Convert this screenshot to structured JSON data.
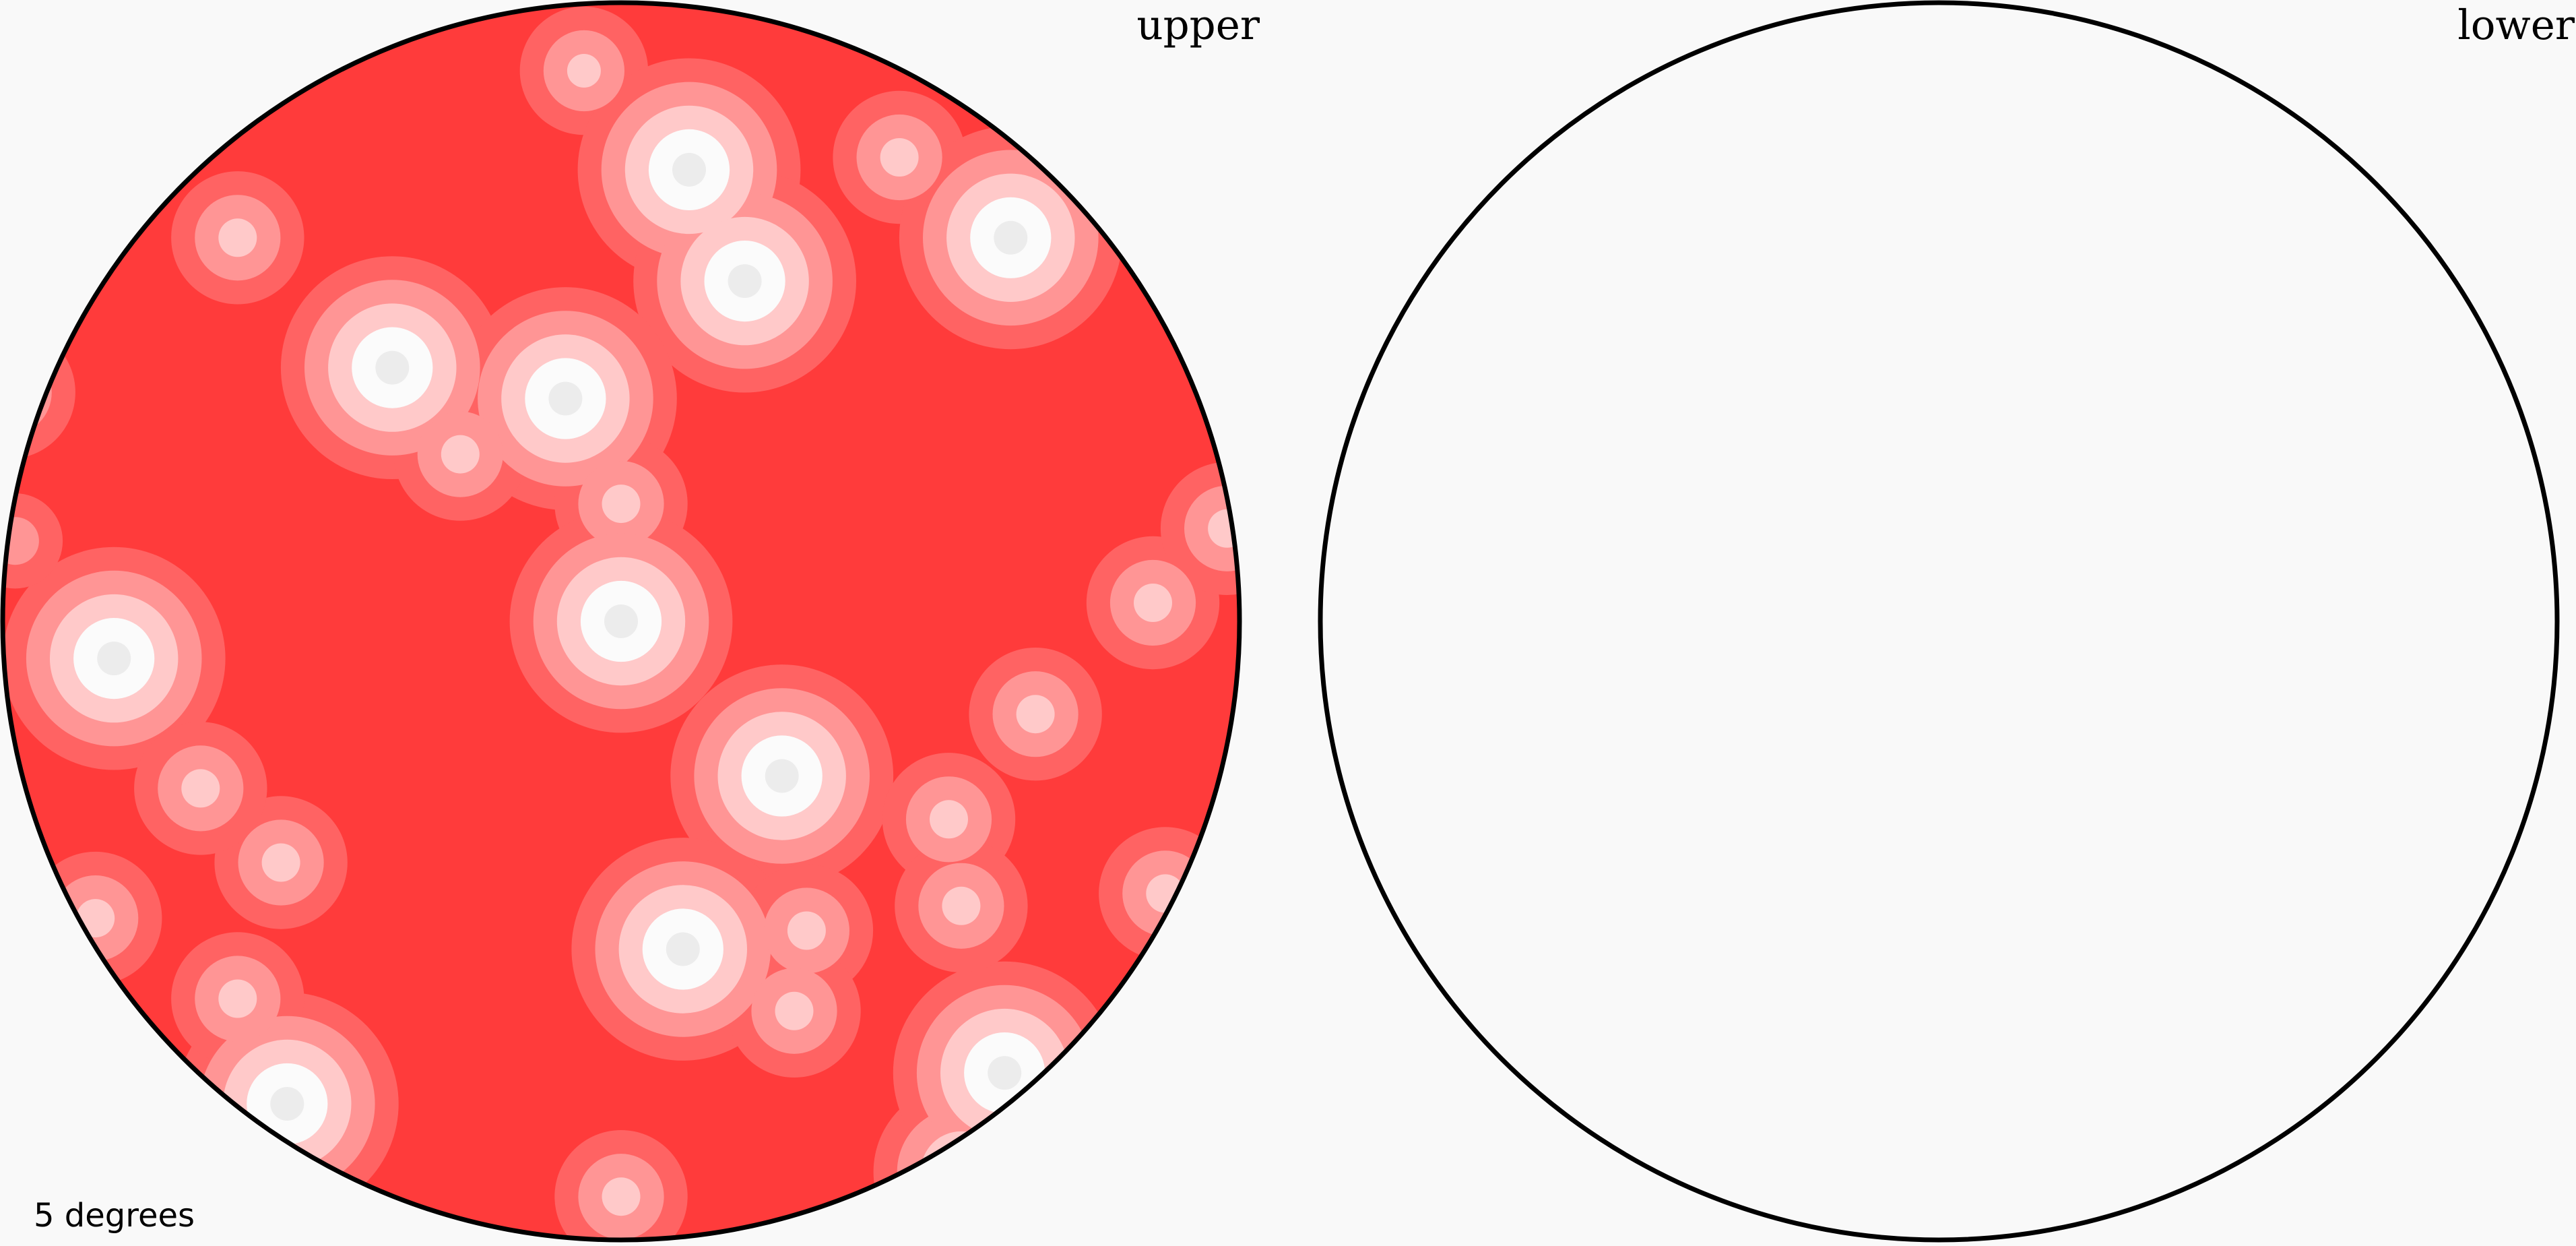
{
  "chart_data": {
    "type": "heatmap",
    "projection": "stereographic",
    "hemispheres": [
      {
        "name": "upper",
        "label": "upper",
        "filled": true
      },
      {
        "name": "lower",
        "label": "lower",
        "filled": false
      }
    ],
    "annotation": "5 degrees",
    "colors": {
      "background": "#f9f9f9",
      "outline": "#000000",
      "levels": [
        "#ff3b3b",
        "#ff6363",
        "#ff9595",
        "#ffc9c9",
        "#fbfbfb",
        "#ececec",
        "#d6d6d6",
        "#bcbcbc",
        "#a2a2a2",
        "#888888"
      ]
    },
    "peaks": [
      [
        -0.06,
        -0.89,
        3.2
      ],
      [
        0.11,
        -0.73,
        5.2
      ],
      [
        0.2,
        -0.55,
        5.2
      ],
      [
        0.45,
        -0.75,
        3.3
      ],
      [
        0.63,
        -0.62,
        5.2
      ],
      [
        -0.62,
        -0.62,
        3.3
      ],
      [
        -0.37,
        -0.41,
        5.2
      ],
      [
        -0.09,
        -0.36,
        5.2
      ],
      [
        -0.26,
        -0.27,
        3.3
      ],
      [
        0.0,
        -0.19,
        3.3
      ],
      [
        0.0,
        0.0,
        5.2
      ],
      [
        0.26,
        0.25,
        5.2
      ],
      [
        0.1,
        0.53,
        5.2
      ],
      [
        0.55,
        0.89,
        4.2
      ],
      [
        0.62,
        0.73,
        5.2
      ],
      [
        -0.55,
        0.39,
        3.3
      ],
      [
        -0.54,
        0.78,
        5.2
      ],
      [
        -0.82,
        0.06,
        5.2
      ],
      [
        -0.99,
        -0.37,
        3.3
      ],
      [
        -0.98,
        -0.13,
        2.5
      ],
      [
        -0.68,
        0.27,
        3.3
      ],
      [
        -0.62,
        0.61,
        3.3
      ],
      [
        0.0,
        0.93,
        3.3
      ],
      [
        0.53,
        0.32,
        3.3
      ],
      [
        0.88,
        0.44,
        3.3
      ],
      [
        0.86,
        -0.03,
        3.3
      ],
      [
        0.98,
        -0.15,
        3.3
      ],
      [
        0.67,
        0.15,
        3.3
      ],
      [
        -0.85,
        0.48,
        3.3
      ],
      [
        0.55,
        0.46,
        3.3
      ],
      [
        0.3,
        0.5,
        3.3
      ],
      [
        0.28,
        0.63,
        3.3
      ]
    ]
  }
}
